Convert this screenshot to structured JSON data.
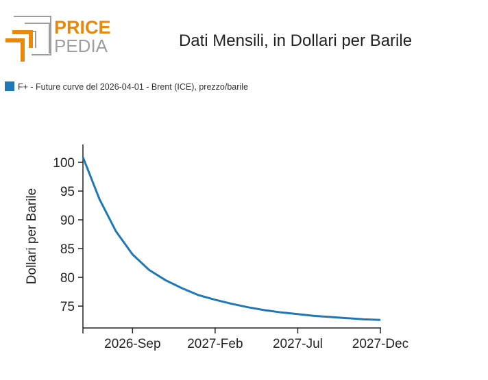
{
  "logo": {
    "top": "PRICE",
    "bottom": "PEDIA",
    "orange": "#E8890C",
    "gray": "#9E9E9E"
  },
  "chart_data": {
    "type": "line",
    "title": "Dati Mensili, in Dollari per Barile",
    "xlabel": "",
    "ylabel": "Dollari per Barile",
    "legend_position": "top-left",
    "grid": false,
    "x": [
      "2026-06",
      "2026-07",
      "2026-08",
      "2026-09",
      "2026-10",
      "2026-11",
      "2026-12",
      "2027-01",
      "2027-02",
      "2027-03",
      "2027-04",
      "2027-05",
      "2027-06",
      "2027-07",
      "2027-08",
      "2027-09",
      "2027-10",
      "2027-11",
      "2027-12"
    ],
    "series": [
      {
        "name": "F+ - Future curve del 2026-04-01 - Brent (ICE), prezzo/barile",
        "color": "#1F77B4",
        "values": [
          100.9,
          93.6,
          88.0,
          84.0,
          81.3,
          79.5,
          78.1,
          76.9,
          76.1,
          75.4,
          74.8,
          74.3,
          73.9,
          73.6,
          73.3,
          73.1,
          72.9,
          72.7,
          72.6
        ]
      }
    ],
    "ylim": [
      71.2,
      103.1
    ],
    "yticks": [
      75,
      80,
      85,
      90,
      95,
      100
    ],
    "xticks": [
      {
        "index": 3,
        "label": "2026-Sep"
      },
      {
        "index": 8,
        "label": "2027-Feb"
      },
      {
        "index": 13,
        "label": "2027-Jul"
      },
      {
        "index": 18,
        "label": "2027-Dec"
      }
    ]
  }
}
